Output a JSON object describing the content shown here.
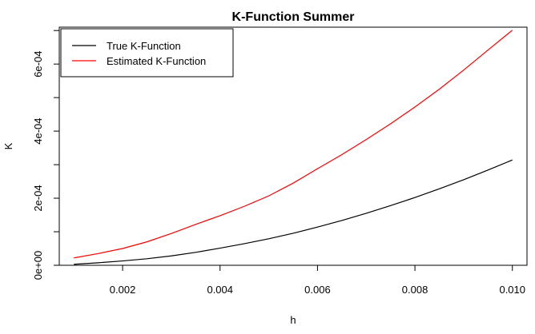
{
  "chart_data": {
    "type": "line",
    "title": "K-Function Summer",
    "xlabel": "h",
    "ylabel": "K",
    "xlim": [
      0.0007,
      0.0103
    ],
    "ylim": [
      0,
      0.00071
    ],
    "xticks": [
      0.002,
      0.004,
      0.006,
      0.008,
      0.01
    ],
    "xtick_labels": [
      "0.002",
      "0.004",
      "0.006",
      "0.008",
      "0.010"
    ],
    "yticks": [
      0,
      0.0001,
      0.0002,
      0.0003,
      0.0004,
      0.0005,
      0.0006,
      0.0007
    ],
    "ytick_labels": [
      "0e+00",
      "",
      "2e-04",
      "",
      "4e-04",
      "",
      "6e-04",
      ""
    ],
    "grid": false,
    "legend_position": "top-left",
    "series": [
      {
        "name": "True K-Function",
        "color": "#000000",
        "x": [
          0.001,
          0.0015,
          0.002,
          0.0025,
          0.003,
          0.0035,
          0.004,
          0.0045,
          0.005,
          0.0055,
          0.006,
          0.0065,
          0.007,
          0.0075,
          0.008,
          0.0085,
          0.009,
          0.0095,
          0.01
        ],
        "y": [
          3e-06,
          7.5e-06,
          1.3e-05,
          1.95e-05,
          2.8e-05,
          3.85e-05,
          5.1e-05,
          6.45e-05,
          7.9e-05,
          9.55e-05,
          0.000114,
          0.0001335,
          0.000155,
          0.000178,
          0.000202,
          0.000228,
          0.000255,
          0.000284,
          0.000314
        ]
      },
      {
        "name": "Estimated K-Function",
        "color": "#ff0000",
        "x": [
          0.001,
          0.0015,
          0.002,
          0.0025,
          0.003,
          0.0035,
          0.004,
          0.0045,
          0.005,
          0.0055,
          0.006,
          0.0065,
          0.007,
          0.0075,
          0.008,
          0.0085,
          0.009,
          0.0095,
          0.01
        ],
        "y": [
          2.2e-05,
          3.5e-05,
          5e-05,
          7e-05,
          9.5e-05,
          0.000122,
          0.000148,
          0.000176,
          0.000207,
          0.000245,
          0.000288,
          0.00033,
          0.000375,
          0.000422,
          0.000472,
          0.000525,
          0.000582,
          0.000642,
          0.000701
        ]
      }
    ]
  }
}
